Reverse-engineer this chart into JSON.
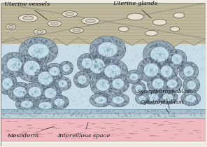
{
  "bg_color": "#f2ede4",
  "uterine_wall_color": "#c0b89a",
  "uterine_hatch_color": "#a8a090",
  "intervillous_color": "#c8dde8",
  "intervillous_dot_color": "#8ab0c0",
  "syncytio_outer_color": "#8899a8",
  "syncytio_stipple_color": "#6a7a88",
  "cyto_inner_color": "#b8c8d0",
  "mesoderm_color": "#f0b8c0",
  "mesoderm_dash_color": "#c08090",
  "base_layer_color": "#b0c4cc",
  "vessel_fill": "#e8e0d0",
  "vessel_inner": "#d0c8b8",
  "gland_fill": "#e8e0d0",
  "label_fontsize": 6.0,
  "labels": {
    "uterine_vessels": "Uterine vessels",
    "uterine_glands": "Uterine glands",
    "syncytio": "Syncytiotrophoblast",
    "cytotro": "Cytotrophoblast",
    "mesoderm": "Mesoderm",
    "intervillous": "Intervillous space"
  }
}
